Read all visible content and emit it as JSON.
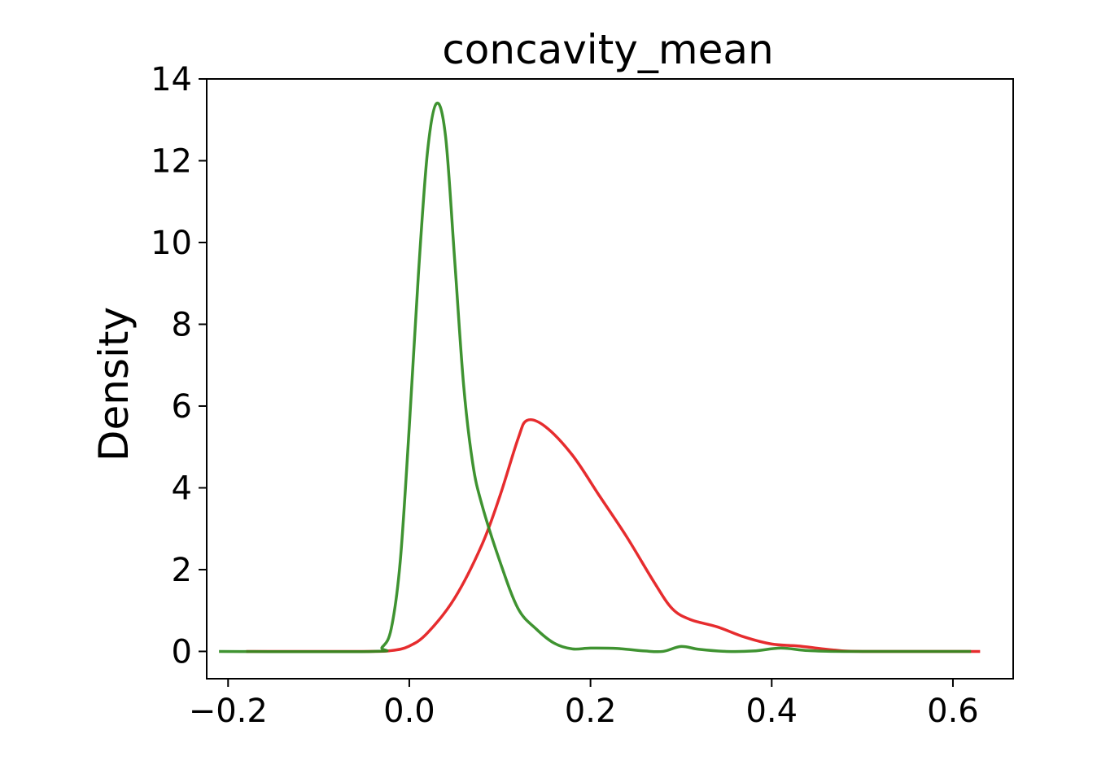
{
  "chart_data": {
    "type": "line",
    "title": "concavity_mean",
    "xlabel": "",
    "ylabel": "Density",
    "xlim": [
      -0.2236,
      0.6665
    ],
    "ylim": [
      -0.668,
      14.0
    ],
    "x_ticks": [
      -0.2,
      0.0,
      0.2,
      0.4,
      0.6
    ],
    "x_tick_labels": [
      "−0.2",
      "0.0",
      "0.2",
      "0.4",
      "0.6"
    ],
    "y_ticks": [
      0,
      2,
      4,
      6,
      8,
      10,
      12,
      14
    ],
    "y_tick_labels": [
      "0",
      "2",
      "4",
      "6",
      "8",
      "10",
      "12",
      "14"
    ],
    "grid": false,
    "legend": "none",
    "series": [
      {
        "color": "#e41a1c",
        "points": [
          [
            -0.18,
            0.0
          ],
          [
            -0.05,
            0.0
          ],
          [
            -0.02,
            0.02
          ],
          [
            0.0,
            0.13
          ],
          [
            0.02,
            0.45
          ],
          [
            0.05,
            1.3
          ],
          [
            0.08,
            2.6
          ],
          [
            0.1,
            3.8
          ],
          [
            0.12,
            5.2
          ],
          [
            0.13,
            5.65
          ],
          [
            0.15,
            5.5
          ],
          [
            0.18,
            4.8
          ],
          [
            0.21,
            3.8
          ],
          [
            0.24,
            2.8
          ],
          [
            0.27,
            1.7
          ],
          [
            0.29,
            1.05
          ],
          [
            0.31,
            0.78
          ],
          [
            0.34,
            0.6
          ],
          [
            0.37,
            0.35
          ],
          [
            0.4,
            0.18
          ],
          [
            0.43,
            0.13
          ],
          [
            0.47,
            0.03
          ],
          [
            0.5,
            0.0
          ],
          [
            0.63,
            0.0
          ]
        ]
      },
      {
        "color": "#2f8a1f",
        "points": [
          [
            -0.21,
            0.0
          ],
          [
            -0.04,
            0.0
          ],
          [
            -0.03,
            0.1
          ],
          [
            -0.02,
            0.55
          ],
          [
            -0.01,
            2.2
          ],
          [
            0.0,
            5.5
          ],
          [
            0.01,
            9.2
          ],
          [
            0.02,
            12.2
          ],
          [
            0.03,
            13.4
          ],
          [
            0.04,
            12.6
          ],
          [
            0.05,
            9.6
          ],
          [
            0.06,
            6.5
          ],
          [
            0.07,
            4.6
          ],
          [
            0.08,
            3.6
          ],
          [
            0.1,
            2.2
          ],
          [
            0.12,
            1.05
          ],
          [
            0.14,
            0.55
          ],
          [
            0.16,
            0.2
          ],
          [
            0.18,
            0.06
          ],
          [
            0.2,
            0.08
          ],
          [
            0.23,
            0.07
          ],
          [
            0.26,
            0.01
          ],
          [
            0.28,
            0.0
          ],
          [
            0.3,
            0.12
          ],
          [
            0.32,
            0.05
          ],
          [
            0.35,
            0.0
          ],
          [
            0.38,
            0.01
          ],
          [
            0.41,
            0.08
          ],
          [
            0.44,
            0.02
          ],
          [
            0.48,
            0.0
          ],
          [
            0.62,
            0.0
          ]
        ]
      }
    ]
  }
}
